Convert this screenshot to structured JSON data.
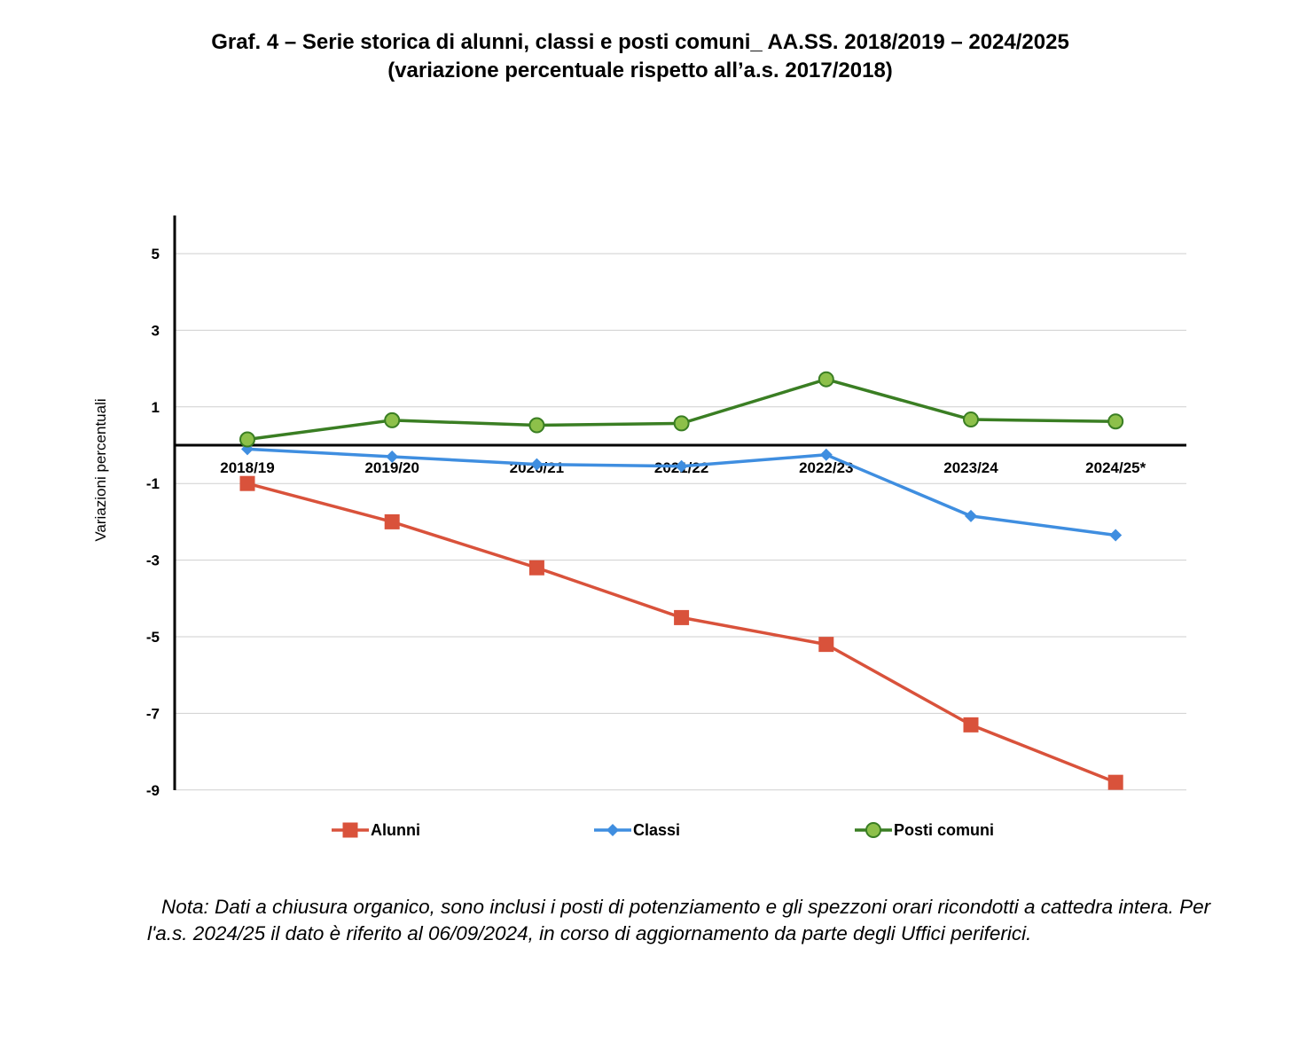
{
  "title_line1": "Graf. 4 – Serie storica di alunni, classi e posti comuni_ AA.SS. 2018/2019 – 2024/2025",
  "title_line2": "(variazione percentuale rispetto all’a.s. 2017/2018)",
  "note": "Nota: Dati a chiusura organico, sono inclusi i posti di potenziamento e gli spezzoni orari ricondotti a cattedra intera. Per l'a.s. 2024/25 il dato è riferito al 06/09/2024, in corso di aggiornamento da parte degli Uffici periferici.",
  "chart_data": {
    "type": "line",
    "ylabel": "Variazioni percentuali",
    "ylim": [
      -9,
      6
    ],
    "yticks": [
      5,
      3,
      1,
      -1,
      -3,
      -5,
      -7,
      -9
    ],
    "grid": true,
    "legend_position": "bottom",
    "categories": [
      "2018/19",
      "2019/20",
      "2020/21",
      "2021/22",
      "2022/23",
      "2023/24",
      "2024/25*"
    ],
    "series": [
      {
        "name": "Alunni",
        "color": "#d9523b",
        "marker": "square",
        "values": [
          -1.0,
          -2.0,
          -3.2,
          -4.5,
          -5.2,
          -7.3,
          -8.8
        ]
      },
      {
        "name": "Classi",
        "color": "#3f8ee0",
        "marker": "diamond",
        "values": [
          -0.1,
          -0.3,
          -0.5,
          -0.55,
          -0.25,
          -1.85,
          -2.35
        ]
      },
      {
        "name": "Posti comuni",
        "color": "#3a7e23",
        "marker_fill": "#8dc04a",
        "marker": "circle",
        "values": [
          0.15,
          0.65,
          0.52,
          0.57,
          1.72,
          0.67,
          0.62
        ]
      }
    ]
  }
}
